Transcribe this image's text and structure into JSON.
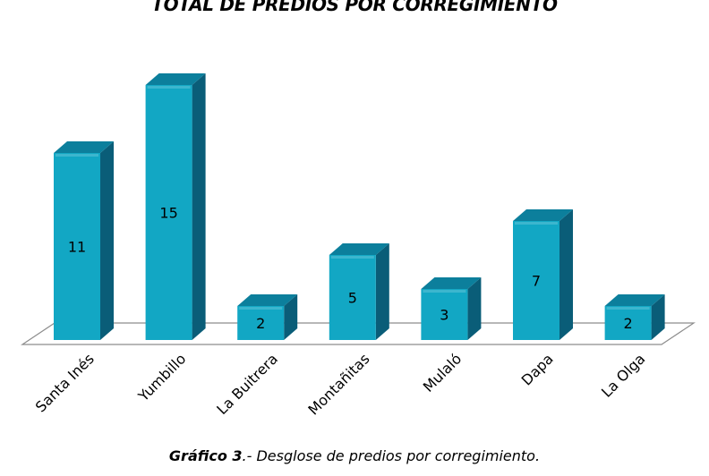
{
  "chart_data": {
    "type": "bar",
    "title": "TOTAL DE PREDIOS POR CORREGIMIENTO",
    "categories": [
      "Santa Inés",
      "Yumbillo",
      "La Buitrera",
      "Montañitas",
      "Mulaló",
      "Dapa",
      "La Olga"
    ],
    "values": [
      11,
      15,
      2,
      5,
      3,
      7,
      2
    ],
    "xlabel": "",
    "ylabel": "",
    "ylim": [
      0,
      15
    ],
    "grid": false,
    "legend": "none",
    "data_labels": true,
    "style": "3d-column"
  },
  "caption": {
    "label": "Gráfico 3",
    "text": ".- Desglose de predios por corregimiento."
  },
  "colors": {
    "bar_front": "#12a7c4",
    "bar_side": "#0a5d78",
    "bar_top": "#0c7f9c",
    "floor": "#ffffff",
    "floor_edge": "#8c8c8c"
  }
}
